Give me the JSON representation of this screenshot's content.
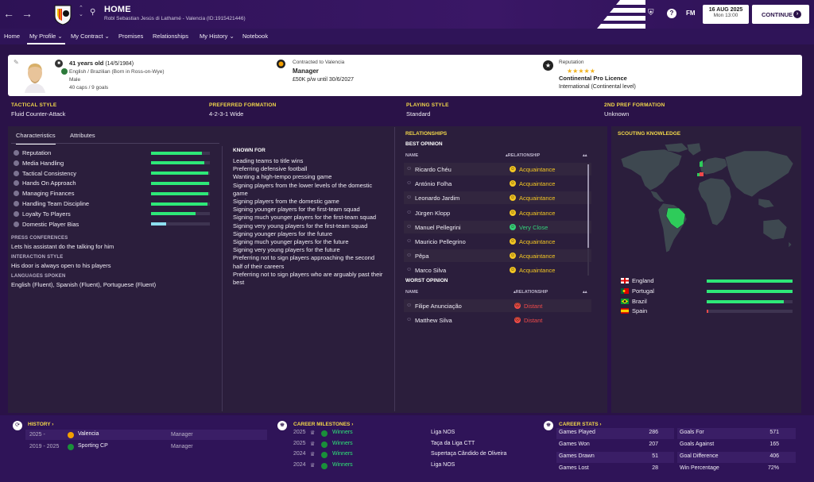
{
  "topbar": {
    "back_icon": "back-arrow-icon",
    "forward_icon": "forward-arrow-icon",
    "title": "HOME",
    "subtitle": "Robl Sebastian Jesús di Lathamé - Valencia (ID:1915421446)",
    "date": "16 AUG 2025",
    "time": "Mon 13:00",
    "continue_label": "CONTINUE",
    "fm_label": "FM"
  },
  "tabs": [
    {
      "label": "Home"
    },
    {
      "label": "My Profile ⌄"
    },
    {
      "label": "My Contract ⌄"
    },
    {
      "label": "Promises"
    },
    {
      "label": "Relationships"
    },
    {
      "label": "My History ⌄"
    },
    {
      "label": "Notebook"
    }
  ],
  "profile": {
    "age": "41 years old",
    "dob": "(14/5/1984)",
    "nationality": "English / Brazilian (Born in Ross-on-Wye)",
    "gender": "Male",
    "caps": "40 caps / 9 goals",
    "contract_label": "Contracted to Valencia",
    "role": "Manager",
    "wage": "£50K p/w until 30/6/2027",
    "reputation_label": "Reputation",
    "reputation_stars": "★★★★★",
    "licence": "Continental Pro Licence",
    "reputation_level": "International (Continental level)"
  },
  "style_row": {
    "tactical_style_label": "TACTICAL STYLE",
    "tactical_style": "Fluid Counter-Attack",
    "preferred_formation_label": "PREFERRED FORMATION",
    "preferred_formation": "4-2-3-1 Wide",
    "playing_style_label": "PLAYING STYLE",
    "playing_style": "Standard",
    "second_formation_label": "2ND PREF FORMATION",
    "second_formation": "Unknown"
  },
  "characteristics": {
    "tab_characteristics": "Characteristics",
    "tab_attributes": "Attributes",
    "items": [
      {
        "label": "Reputation",
        "level": 0.86,
        "color": "#2ee878"
      },
      {
        "label": "Media Handling",
        "level": 0.9,
        "color": "#2ee878"
      },
      {
        "label": "Tactical Consistency",
        "level": 0.97,
        "color": "#2ee878"
      },
      {
        "label": "Hands On Approach",
        "level": 0.98,
        "color": "#2ee878"
      },
      {
        "label": "Managing Finances",
        "level": 0.97,
        "color": "#2ee878"
      },
      {
        "label": "Handling Team Discipline",
        "level": 0.96,
        "color": "#2ee878"
      },
      {
        "label": "Loyalty To Players",
        "level": 0.75,
        "color": "#2ee878"
      },
      {
        "label": "Domestic Player Bias",
        "level": 0.25,
        "color": "#8de0f0"
      }
    ],
    "press_label": "PRESS CONFERENCES",
    "press_value": "Lets his assistant do the talking for him",
    "interaction_label": "INTERACTION STYLE",
    "interaction_value": "His door is always open to his players",
    "languages_label": "LANGUAGES SPOKEN",
    "languages_value": "English (Fluent), Spanish (Fluent), Portuguese (Fluent)"
  },
  "known_for": {
    "title": "KNOWN FOR",
    "items": [
      "Leading teams to title wins",
      "Preferring defensive football",
      "Wanting a high-tempo pressing game",
      "Signing players from the lower levels of the domestic game",
      "Signing players from the domestic game",
      "Signing younger players for the first-team squad",
      "Signing much younger players for the first-team squad",
      "Signing very young players for the first-team squad",
      "Signing younger players for the future",
      "Signing much younger players for the future",
      "Signing very young players for the future",
      "Preferring not to sign players approaching the second half of their careers",
      "Preferring not to sign players who are arguably past their best"
    ]
  },
  "relationships": {
    "title": "RELATIONSHIPS",
    "best_label": "BEST OPINION",
    "worst_label": "WORST OPINION",
    "name_col": "NAME",
    "rel_col": "▴RELATIONSHIP",
    "best": [
      {
        "name": "Ricardo Chéu",
        "type": "Acquaintance",
        "color": "#f3c623"
      },
      {
        "name": "António Folha",
        "type": "Acquaintance",
        "color": "#f3c623"
      },
      {
        "name": "Leonardo Jardim",
        "type": "Acquaintance",
        "color": "#f3c623"
      },
      {
        "name": "Jürgen Klopp",
        "type": "Acquaintance",
        "color": "#f3c623"
      },
      {
        "name": "Manuel Pellegrini",
        "type": "Very Close",
        "color": "#33d17a"
      },
      {
        "name": "Mauricio Pellegrino",
        "type": "Acquaintance",
        "color": "#f3c623"
      },
      {
        "name": "Pêpa",
        "type": "Acquaintance",
        "color": "#f3c623"
      },
      {
        "name": "Marco Silva",
        "type": "Acquaintance",
        "color": "#f3c623"
      }
    ],
    "worst": [
      {
        "name": "Filipe Anunciação",
        "type": "Distant",
        "color": "#f04a4a"
      },
      {
        "name": "Matthew Silva",
        "type": "Distant",
        "color": "#f04a4a"
      }
    ]
  },
  "scouting": {
    "title": "SCOUTING KNOWLEDGE",
    "nations": [
      {
        "name": "England",
        "level": 1.0,
        "color": "#2ee878",
        "flag": "england"
      },
      {
        "name": "Portugal",
        "level": 1.0,
        "color": "#2ee878",
        "flag": "portugal"
      },
      {
        "name": "Brazil",
        "level": 0.9,
        "color": "#2ee878",
        "flag": "brazil"
      },
      {
        "name": "Spain",
        "level": 0.02,
        "color": "#f04a4a",
        "flag": "spain"
      }
    ]
  },
  "history": {
    "title": "HISTORY ›",
    "rows": [
      {
        "years": "2025 -",
        "club": "Valencia",
        "role": "Manager"
      },
      {
        "years": "2019 - 2025",
        "club": "Sporting CP",
        "role": "Manager"
      }
    ]
  },
  "milestones": {
    "title": "CAREER MILESTONES ›",
    "rows": [
      {
        "year": "2025",
        "result": "Winners",
        "competition": "Liga NOS"
      },
      {
        "year": "2025",
        "result": "Winners",
        "competition": "Taça da Liga CTT"
      },
      {
        "year": "2024",
        "result": "Winners",
        "competition": "Supertaça Cândido de Oliveira"
      },
      {
        "year": "2024",
        "result": "Winners",
        "competition": "Liga NOS"
      }
    ]
  },
  "career_stats": {
    "title": "CAREER STATS ›",
    "left": [
      {
        "label": "Games Played",
        "value": "286"
      },
      {
        "label": "Games Won",
        "value": "207"
      },
      {
        "label": "Games Drawn",
        "value": "51"
      },
      {
        "label": "Games Lost",
        "value": "28"
      }
    ],
    "right": [
      {
        "label": "Goals For",
        "value": "571"
      },
      {
        "label": "Goals Against",
        "value": "165"
      },
      {
        "label": "Goal Difference",
        "value": "406"
      },
      {
        "label": "Win Percentage",
        "value": "72%"
      }
    ]
  }
}
